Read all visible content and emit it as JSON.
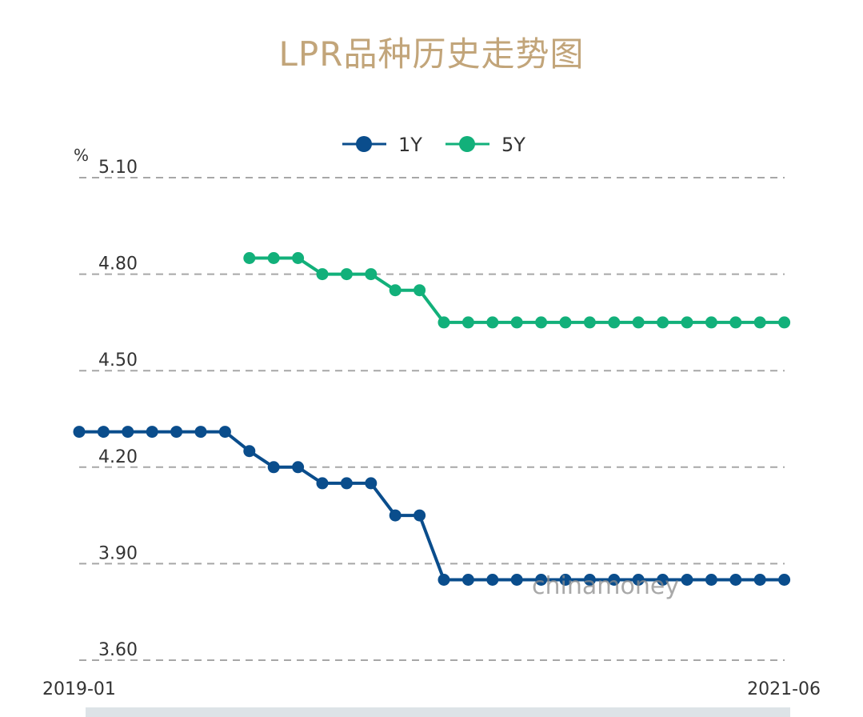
{
  "page_title": "LPR品种历史走势图",
  "watermark": "chinamoney",
  "colors": {
    "title": "#c2a57a",
    "series_1y": "#0a4d8c",
    "series_5y": "#12b07a",
    "grid": "#a7a7a7",
    "axis_text": "#333333"
  },
  "chart_data": {
    "type": "line",
    "title": "LPR品种历史走势图",
    "ylabel": "%",
    "xlabel": "",
    "ylim": [
      3.6,
      5.1
    ],
    "y_ticks": [
      "3.60",
      "3.90",
      "4.20",
      "4.50",
      "4.80",
      "5.10"
    ],
    "x_tick_labels": [
      "2019-01",
      "2021-06"
    ],
    "legend_position": "top-center",
    "grid": "horizontal-dashed",
    "x": [
      "2019-01",
      "2019-02",
      "2019-03",
      "2019-04",
      "2019-05",
      "2019-06",
      "2019-07",
      "2019-08",
      "2019-09",
      "2019-10",
      "2019-11",
      "2019-12",
      "2020-01",
      "2020-02",
      "2020-03",
      "2020-04",
      "2020-05",
      "2020-06",
      "2020-07",
      "2020-08",
      "2020-09",
      "2020-10",
      "2020-11",
      "2020-12",
      "2021-01",
      "2021-02",
      "2021-03",
      "2021-04",
      "2021-05",
      "2021-06"
    ],
    "series": [
      {
        "name": "1Y",
        "values": [
          4.31,
          4.31,
          4.31,
          4.31,
          4.31,
          4.31,
          4.31,
          4.25,
          4.2,
          4.2,
          4.15,
          4.15,
          4.15,
          4.05,
          4.05,
          3.85,
          3.85,
          3.85,
          3.85,
          3.85,
          3.85,
          3.85,
          3.85,
          3.85,
          3.85,
          3.85,
          3.85,
          3.85,
          3.85,
          3.85
        ]
      },
      {
        "name": "5Y",
        "values": [
          null,
          null,
          null,
          null,
          null,
          null,
          null,
          4.85,
          4.85,
          4.85,
          4.8,
          4.8,
          4.8,
          4.75,
          4.75,
          4.65,
          4.65,
          4.65,
          4.65,
          4.65,
          4.65,
          4.65,
          4.65,
          4.65,
          4.65,
          4.65,
          4.65,
          4.65,
          4.65,
          4.65
        ]
      }
    ]
  }
}
